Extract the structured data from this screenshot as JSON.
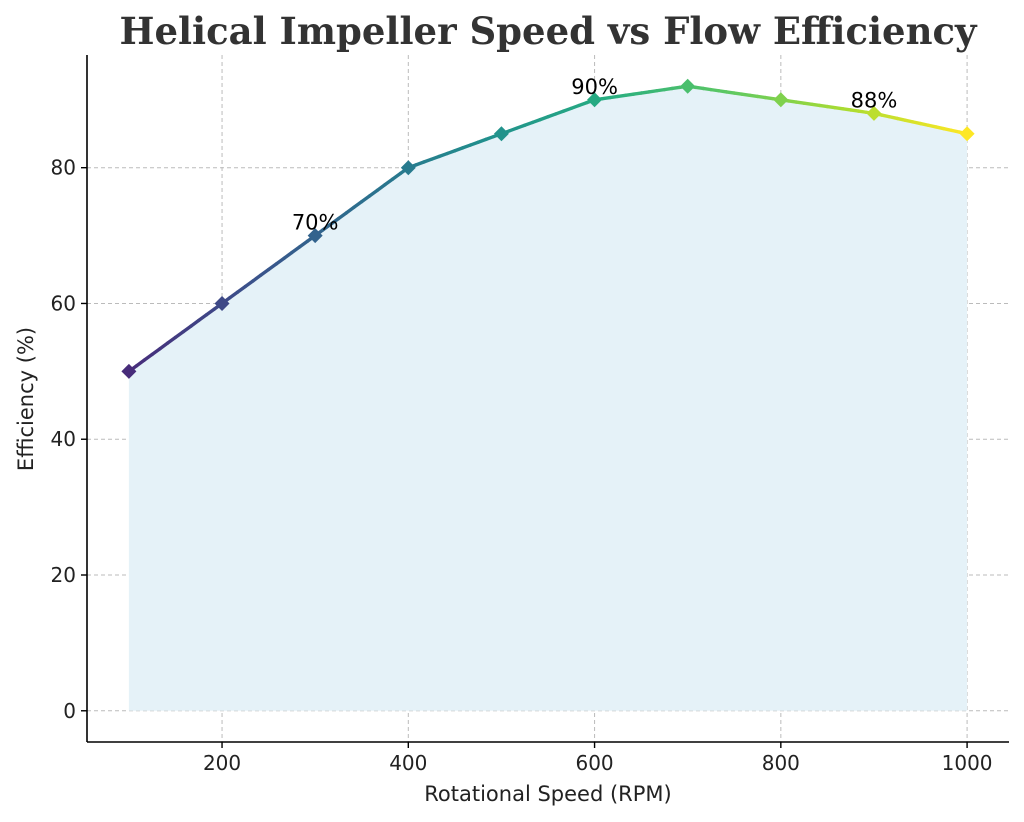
{
  "chart_data": {
    "type": "line",
    "title": "Helical Impeller Speed vs Flow Efficiency",
    "xlabel": "Rotational Speed (RPM)",
    "ylabel": "Efficiency (%)",
    "x": [
      100,
      200,
      300,
      400,
      500,
      600,
      700,
      800,
      900,
      1000
    ],
    "y": [
      50,
      60,
      70,
      80,
      85,
      90,
      92,
      90,
      88,
      85
    ],
    "xlim": [
      55,
      1045
    ],
    "ylim": [
      -4.6,
      96.6
    ],
    "xticks": [
      200,
      400,
      600,
      800,
      1000
    ],
    "yticks": [
      0,
      20,
      40,
      60,
      80
    ],
    "grid": true,
    "area_fill": true,
    "area_color": "#e5f2f8",
    "marker": "diamond",
    "colormap": "viridis",
    "segment_colors": [
      "#472c7a",
      "#3b518b",
      "#2c718e",
      "#21908d",
      "#27ad81",
      "#5cc863",
      "#aadc32",
      "#fde725"
    ],
    "annotations": [
      {
        "x": 300,
        "y": 70,
        "text": "70%"
      },
      {
        "x": 600,
        "y": 90,
        "text": "90%"
      },
      {
        "x": 900,
        "y": 88,
        "text": "88%"
      }
    ]
  }
}
